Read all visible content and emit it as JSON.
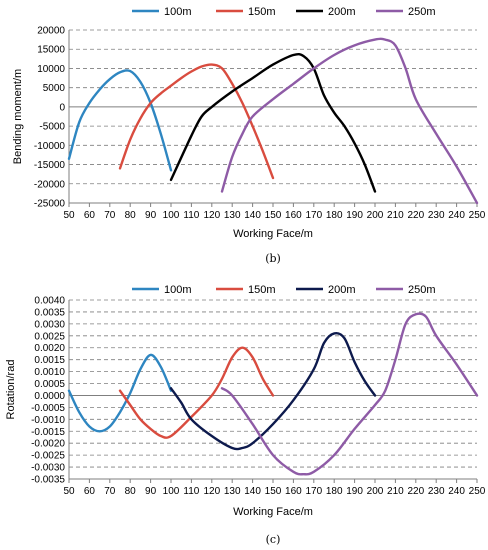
{
  "chart_data": [
    {
      "type": "line",
      "caption": "(b)",
      "xlabel": "Working Face/m",
      "ylabel": "Bending moment/m",
      "xlim": [
        50,
        250
      ],
      "ylim": [
        -25000,
        20000
      ],
      "xticks": [
        50,
        60,
        70,
        80,
        90,
        100,
        110,
        120,
        130,
        140,
        150,
        160,
        170,
        180,
        190,
        200,
        210,
        220,
        230,
        240,
        250
      ],
      "yticks": [
        20000,
        15000,
        10000,
        5000,
        0,
        -5000,
        -10000,
        -15000,
        -20000,
        -25000
      ],
      "grid": "horizontal dashed",
      "legend_position": "top",
      "series": [
        {
          "name": "100m",
          "color": "#2e86c1",
          "x": [
            50,
            55,
            60,
            65,
            70,
            75,
            80,
            85,
            90,
            95,
            100
          ],
          "y": [
            -13500,
            -4000,
            1000,
            4500,
            7200,
            9000,
            9300,
            6500,
            1000,
            -7000,
            -16500
          ]
        },
        {
          "name": "150m",
          "color": "#d94c3f",
          "x": [
            75,
            80,
            85,
            90,
            95,
            100,
            105,
            110,
            115,
            120,
            125,
            130,
            135,
            140,
            145,
            150
          ],
          "y": [
            -16000,
            -8500,
            -3000,
            1000,
            3500,
            5500,
            7500,
            9200,
            10500,
            11000,
            10000,
            6000,
            1000,
            -5000,
            -11500,
            -18500
          ]
        },
        {
          "name": "200m",
          "color": "#000000",
          "x": [
            100,
            110,
            115,
            120,
            130,
            140,
            150,
            160,
            165,
            170,
            175,
            180,
            185,
            190,
            195,
            200
          ],
          "y": [
            -19000,
            -7500,
            -2500,
            0,
            4000,
            7500,
            11000,
            13500,
            13200,
            10000,
            3000,
            -1500,
            -5000,
            -9500,
            -15000,
            -22000
          ]
        },
        {
          "name": "250m",
          "color": "#8e5ba6",
          "x": [
            125,
            130,
            135,
            140,
            150,
            160,
            170,
            180,
            190,
            200,
            205,
            210,
            215,
            220,
            230,
            240,
            250
          ],
          "y": [
            -22000,
            -13000,
            -7000,
            -2500,
            2000,
            6000,
            10000,
            13500,
            16000,
            17500,
            17500,
            16000,
            10000,
            2000,
            -7000,
            -15500,
            -25000
          ]
        }
      ]
    },
    {
      "type": "line",
      "caption": "(c)",
      "xlabel": "Working Face/m",
      "ylabel": "Rotation/rad",
      "xlim": [
        50,
        250
      ],
      "ylim": [
        -0.0035,
        0.004
      ],
      "xticks": [
        50,
        60,
        70,
        80,
        90,
        100,
        110,
        120,
        130,
        140,
        150,
        160,
        170,
        180,
        190,
        200,
        210,
        220,
        230,
        240,
        250
      ],
      "yticks": [
        "0.0040",
        "0.0035",
        "0.0030",
        "0.0025",
        "0.0020",
        "0.0015",
        "0.0010",
        "0.0005",
        "0.0000",
        "-0.0005",
        "-0.0010",
        "-0.0015",
        "-0.0020",
        "-0.0025",
        "-0.0030",
        "-0.0035"
      ],
      "grid": "horizontal dashed",
      "legend_position": "top",
      "series": [
        {
          "name": "100m",
          "color": "#2e86c1",
          "x": [
            50,
            55,
            60,
            65,
            70,
            75,
            80,
            85,
            90,
            95,
            100
          ],
          "y": [
            0.0002,
            -0.0007,
            -0.0013,
            -0.0015,
            -0.0013,
            -0.0007,
            0.0001,
            0.0011,
            0.0017,
            0.0012,
            0.0002
          ]
        },
        {
          "name": "150m",
          "color": "#d94c3f",
          "x": [
            75,
            80,
            85,
            90,
            95,
            100,
            110,
            120,
            125,
            130,
            135,
            140,
            145,
            150
          ],
          "y": [
            0.0002,
            -0.0004,
            -0.001,
            -0.0014,
            -0.0017,
            -0.0017,
            -0.0009,
            0.0,
            0.0007,
            0.0016,
            0.002,
            0.0016,
            0.0007,
            0.0
          ]
        },
        {
          "name": "200m",
          "color": "#0d1a4d",
          "x": [
            100,
            105,
            110,
            120,
            130,
            135,
            140,
            150,
            160,
            170,
            175,
            180,
            185,
            190,
            195,
            200
          ],
          "y": [
            0.0003,
            -0.0003,
            -0.001,
            -0.0017,
            -0.0022,
            -0.0022,
            -0.002,
            -0.0012,
            -0.0002,
            0.0011,
            0.0022,
            0.0026,
            0.0024,
            0.0014,
            0.0006,
            0.0
          ]
        },
        {
          "name": "250m",
          "color": "#8e5ba6",
          "x": [
            125,
            130,
            140,
            150,
            160,
            165,
            170,
            180,
            190,
            200,
            205,
            210,
            215,
            220,
            225,
            230,
            240,
            250
          ],
          "y": [
            0.0003,
            0.0,
            -0.0012,
            -0.0025,
            -0.0032,
            -0.0033,
            -0.0032,
            -0.0025,
            -0.0014,
            -0.0004,
            0.0002,
            0.0015,
            0.003,
            0.0034,
            0.0033,
            0.0025,
            0.0013,
            0.0
          ]
        }
      ]
    }
  ]
}
